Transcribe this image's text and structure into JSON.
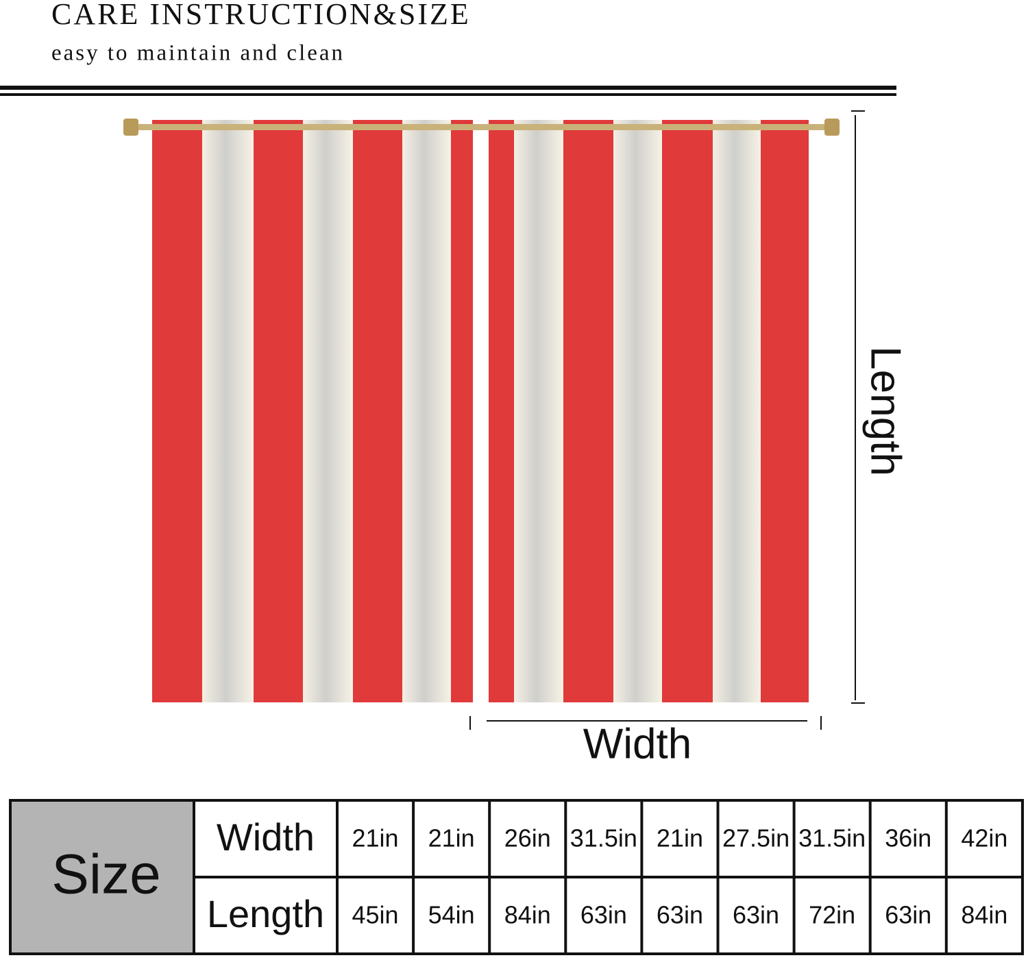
{
  "header": {
    "title": "CARE INSTRUCTION&SIZE",
    "subtitle": "easy to maintain and clean"
  },
  "diagram": {
    "length_label": "Length",
    "width_label": "Width"
  },
  "table": {
    "label": "Size",
    "rows": [
      {
        "label": "Width",
        "values": [
          "21in",
          "21in",
          "26in",
          "31.5in",
          "21in",
          "27.5in",
          "31.5in",
          "36in",
          "42in"
        ]
      },
      {
        "label": "Length",
        "values": [
          "45in",
          "54in",
          "84in",
          "63in",
          "63in",
          "63in",
          "72in",
          "63in",
          "84in"
        ]
      }
    ]
  }
}
